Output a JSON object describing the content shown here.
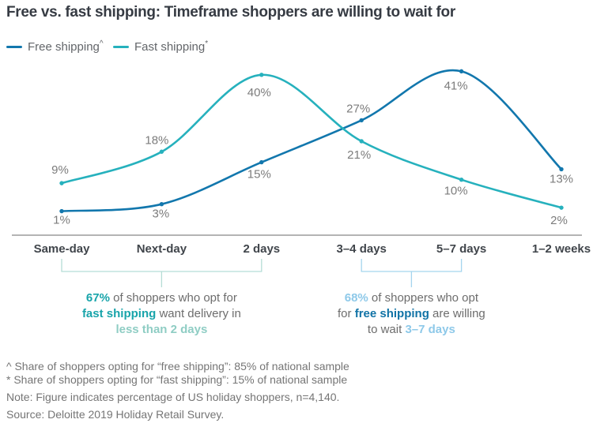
{
  "title": "Free vs. fast shipping: Timeframe shoppers are willing to wait for",
  "legend": {
    "free": {
      "label": "Free shipping",
      "sup": "^",
      "color": "#1277ad"
    },
    "fast": {
      "label": "Fast shipping",
      "sup": "*",
      "color": "#26b1bd"
    }
  },
  "chart_data": {
    "type": "line",
    "title": "Free vs. fast shipping: Timeframe shoppers are willing to wait for",
    "categories": [
      "Same-day",
      "Next-day",
      "2 days",
      "3–4 days",
      "5–7 days",
      "1–2 weeks"
    ],
    "series": [
      {
        "name": "Free shipping",
        "values": [
          1,
          3,
          15,
          27,
          41,
          13
        ],
        "color": "#1277ad",
        "marker_color": "#0d movie6294",
        "label_offsets": [
          [
            0,
            11
          ],
          [
            -1,
            12
          ],
          [
            -3,
            15
          ],
          [
            -4,
            -15
          ],
          [
            -7,
            18
          ],
          [
            0,
            12
          ]
        ]
      },
      {
        "name": "Fast shipping",
        "values": [
          9,
          18,
          40,
          21,
          10,
          2
        ],
        "color": "#26b1bd",
        "marker_color": "#17a0ad",
        "label_offsets": [
          [
            -2,
            -17
          ],
          [
            -6,
            -15
          ],
          [
            -3,
            22
          ],
          [
            -3,
            17
          ],
          [
            -7,
            14
          ],
          [
            -3,
            16
          ]
        ]
      }
    ],
    "value_suffix": "%",
    "ylim": [
      0,
      45
    ],
    "grid": false,
    "legend_position": "top-left",
    "xlabel": "",
    "ylabel": ""
  },
  "annotations": [
    {
      "id": "fast-shipping-note",
      "bracket": {
        "from_category": 0,
        "to_category": 2,
        "color": "#b5ddd6"
      },
      "lines": [
        [
          {
            "t": "67%",
            "s": "teal"
          },
          {
            "t": " of shoppers who opt for",
            "s": "gray"
          }
        ],
        [
          {
            "t": "fast shipping",
            "s": "teal"
          },
          {
            "t": " want delivery in",
            "s": "gray"
          }
        ],
        [
          {
            "t": "less than 2 days",
            "s": "mint"
          }
        ]
      ]
    },
    {
      "id": "free-shipping-note",
      "bracket": {
        "from_category": 3,
        "to_category": 4,
        "color": "#a5d5ee"
      },
      "lines": [
        [
          {
            "t": "68%",
            "s": "lightblue"
          },
          {
            "t": " of shoppers who opt",
            "s": "gray"
          }
        ],
        [
          {
            "t": "for ",
            "s": "gray"
          },
          {
            "t": "free shipping",
            "s": "blue"
          },
          {
            "t": " are willing",
            "s": "gray"
          }
        ],
        [
          {
            "t": "to wait ",
            "s": "gray"
          },
          {
            "t": "3–7 days",
            "s": "lightblue"
          }
        ]
      ]
    }
  ],
  "footnotes": [
    "^ Share of shoppers opting for “free shipping”: 85% of national sample",
    "* Share of shoppers opting for “fast shipping”: 15% of national sample",
    "Note: Figure indicates percentage of US holiday shoppers, n=4,140.",
    "Source: Deloitte 2019 Holiday Retail Survey."
  ],
  "colors": {
    "title": "#363b43",
    "axis_line": "#9b9b9b",
    "category_label": "#40454b",
    "data_label": "#7c7c7c",
    "footnote": "#757575",
    "background": "#ffffff"
  }
}
